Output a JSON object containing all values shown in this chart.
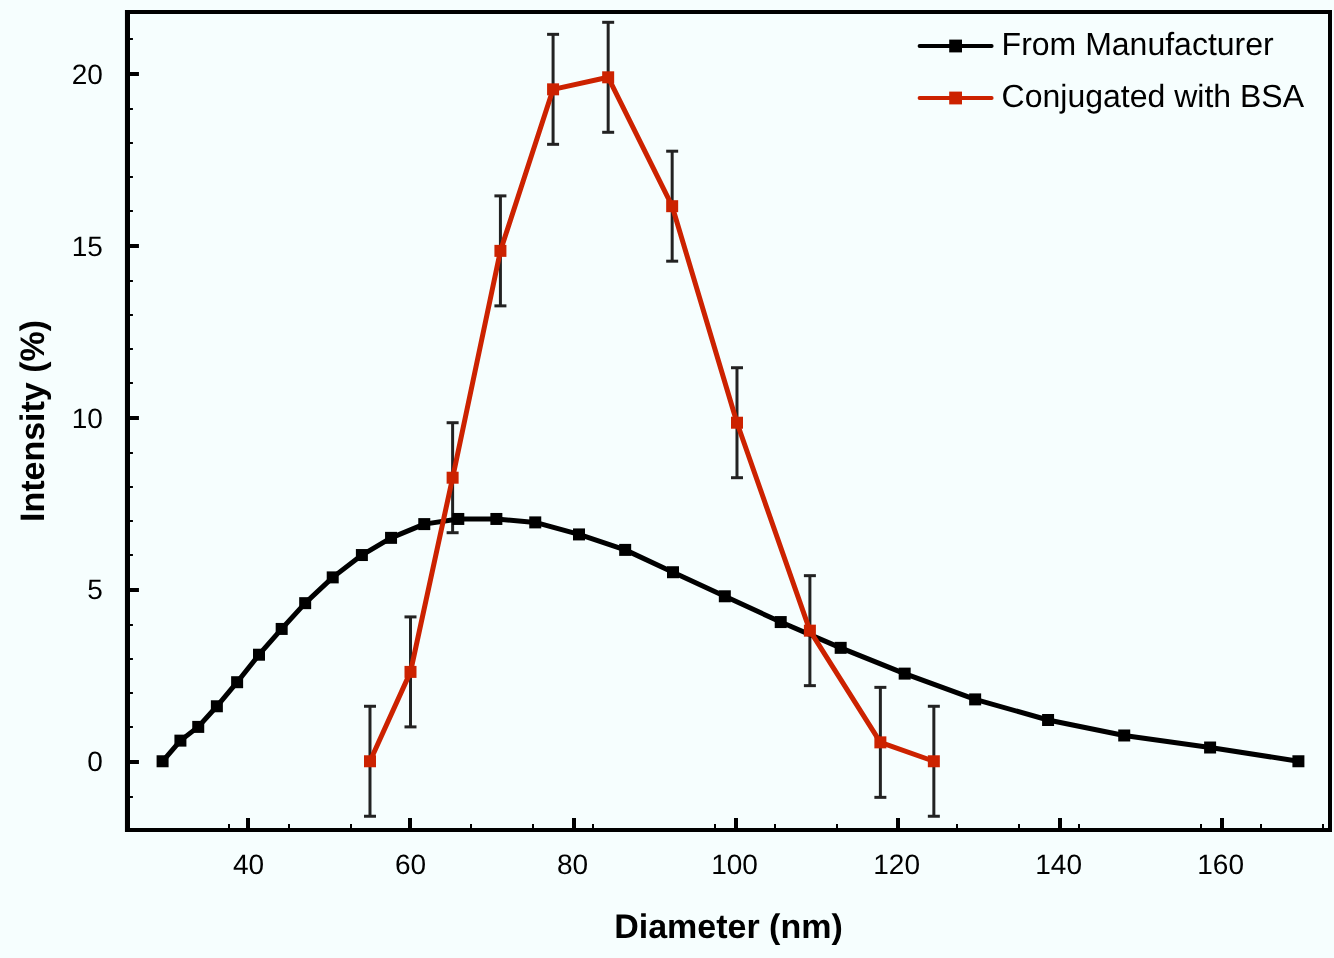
{
  "chart_data": {
    "type": "line",
    "xlabel": "Diameter (nm)",
    "ylabel": "Intensity (%)",
    "xlim": [
      25,
      173.5
    ],
    "xticks": [
      40,
      60,
      80,
      100,
      120,
      140,
      160
    ],
    "ylim": [
      -2,
      21.8
    ],
    "yticks": [
      0,
      5,
      10,
      15,
      20
    ],
    "grid": false,
    "legend": "top right",
    "marker": "square",
    "line_style": "solid",
    "series": [
      {
        "name": "From Manufacturer",
        "color": "#000000",
        "x": [
          29.4,
          31.6,
          33.8,
          36.1,
          38.6,
          41.3,
          44.1,
          47.0,
          50.4,
          54.0,
          57.6,
          61.7,
          65.9,
          70.6,
          75.4,
          80.8,
          86.5,
          92.4,
          98.8,
          105.7,
          113.1,
          121.0,
          129.7,
          138.7,
          148.1,
          158.7,
          169.6
        ],
        "values": [
          0,
          0.6,
          1.0,
          1.6,
          2.3,
          3.1,
          3.85,
          4.6,
          5.35,
          6.0,
          6.5,
          6.9,
          7.05,
          7.05,
          6.95,
          6.6,
          6.15,
          5.5,
          4.8,
          4.05,
          3.3,
          2.55,
          1.8,
          1.2,
          0.75,
          0.4,
          0
        ]
      },
      {
        "name": "Conjugated with BSA",
        "color": "#cc2200",
        "x": [
          55.0,
          60.0,
          65.2,
          71.1,
          77.6,
          84.4,
          92.3,
          100.3,
          109.3,
          118.0,
          124.6
        ],
        "values": [
          0,
          2.6,
          8.25,
          14.85,
          19.55,
          19.9,
          16.15,
          9.85,
          3.8,
          0.55,
          0
        ],
        "errors": [
          1.6,
          1.6,
          1.6,
          1.6,
          1.6,
          1.6,
          1.6,
          1.6,
          1.6,
          1.6,
          1.6
        ]
      }
    ]
  }
}
